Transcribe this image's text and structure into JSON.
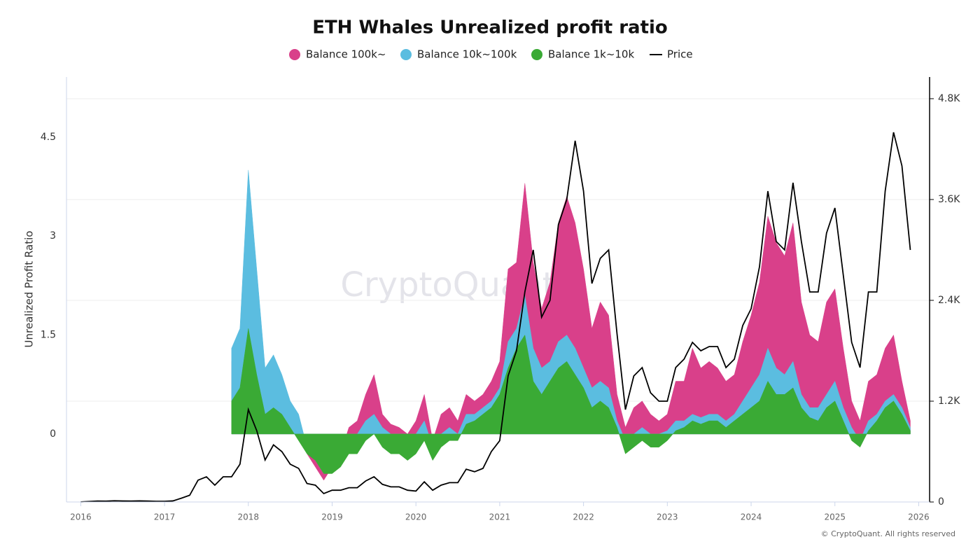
{
  "chart_data": {
    "type": "area",
    "title": "ETH Whales Unrealized profit ratio",
    "y_label": "Unrealized Profit Ratio",
    "watermark": "CryptoQuant",
    "copyright": "© CryptoQuant. All rights reserved",
    "x": [
      2016.0,
      2016.1,
      2016.2,
      2016.3,
      2016.4,
      2016.5,
      2016.6,
      2016.7,
      2016.8,
      2016.9,
      2017.0,
      2017.1,
      2017.2,
      2017.3,
      2017.4,
      2017.5,
      2017.6,
      2017.7,
      2017.8,
      2017.9,
      2018.0,
      2018.1,
      2018.2,
      2018.3,
      2018.4,
      2018.5,
      2018.6,
      2018.7,
      2018.8,
      2018.9,
      2019.0,
      2019.1,
      2019.2,
      2019.3,
      2019.4,
      2019.5,
      2019.6,
      2019.7,
      2019.8,
      2019.9,
      2020.0,
      2020.1,
      2020.2,
      2020.3,
      2020.4,
      2020.5,
      2020.6,
      2020.7,
      2020.8,
      2020.9,
      2021.0,
      2021.1,
      2021.2,
      2021.3,
      2021.4,
      2021.5,
      2021.6,
      2021.7,
      2021.8,
      2021.9,
      2022.0,
      2022.1,
      2022.2,
      2022.3,
      2022.4,
      2022.5,
      2022.6,
      2022.7,
      2022.8,
      2022.9,
      2023.0,
      2023.1,
      2023.2,
      2023.3,
      2023.4,
      2023.5,
      2023.6,
      2023.7,
      2023.8,
      2023.9,
      2024.0,
      2024.1,
      2024.2,
      2024.3,
      2024.4,
      2024.5,
      2024.6,
      2024.7,
      2024.8,
      2024.9,
      2025.0,
      2025.1,
      2025.2,
      2025.3,
      2025.4,
      2025.5,
      2025.6,
      2025.7,
      2025.8,
      2025.9
    ],
    "xlim": [
      2015.83,
      2026.13
    ],
    "xticks": [
      2016,
      2017,
      2018,
      2019,
      2020,
      2021,
      2022,
      2023,
      2024,
      2025,
      2026
    ],
    "ylim": [
      -1.03,
      5.41
    ],
    "yticks": [
      0,
      1.5,
      3,
      4.5
    ],
    "y2lim": [
      0,
      5058
    ],
    "y2ticks": [
      0,
      {
        "value": 1200,
        "label": "1.2K"
      },
      {
        "value": 2400,
        "label": "2.4K"
      },
      {
        "value": 3600,
        "label": "3.6K"
      },
      {
        "value": 4800,
        "label": "4.8K"
      }
    ],
    "grid": true,
    "legend": "top",
    "series": [
      {
        "name": "Balance 100k~",
        "color": "#d9408a",
        "values": [
          null,
          null,
          null,
          null,
          null,
          null,
          null,
          null,
          null,
          null,
          null,
          null,
          null,
          null,
          null,
          null,
          null,
          null,
          1.1,
          1.4,
          3.0,
          1.6,
          0.6,
          1.0,
          0.8,
          0.4,
          0.2,
          -0.3,
          -0.5,
          -0.7,
          -0.5,
          -0.3,
          0.1,
          0.2,
          0.6,
          0.9,
          0.3,
          0.15,
          0.1,
          0.0,
          0.2,
          0.6,
          -0.1,
          0.3,
          0.4,
          0.2,
          0.6,
          0.5,
          0.6,
          0.8,
          1.1,
          2.5,
          2.6,
          3.8,
          2.6,
          1.9,
          2.3,
          3.2,
          3.6,
          3.2,
          2.5,
          1.6,
          2.0,
          1.8,
          0.6,
          0.1,
          0.4,
          0.5,
          0.3,
          0.2,
          0.3,
          0.8,
          0.8,
          1.3,
          1.0,
          1.1,
          1.0,
          0.8,
          0.9,
          1.4,
          1.8,
          2.3,
          3.3,
          2.9,
          2.7,
          3.2,
          2.0,
          1.5,
          1.4,
          2.0,
          2.2,
          1.3,
          0.5,
          0.2,
          0.8,
          0.9,
          1.3,
          1.5,
          0.8,
          0.2
        ]
      },
      {
        "name": "Balance 10k~100k",
        "color": "#5bbde0",
        "values": [
          null,
          null,
          null,
          null,
          null,
          null,
          null,
          null,
          null,
          null,
          null,
          null,
          null,
          null,
          null,
          null,
          null,
          null,
          1.3,
          1.6,
          4.0,
          2.5,
          1.0,
          1.2,
          0.9,
          0.5,
          0.3,
          -0.2,
          -0.4,
          -0.6,
          -0.4,
          -0.2,
          -0.1,
          0.0,
          0.2,
          0.3,
          0.1,
          0.0,
          -0.05,
          -0.1,
          0.0,
          0.2,
          -0.2,
          0.0,
          0.1,
          0.0,
          0.3,
          0.3,
          0.4,
          0.5,
          0.7,
          1.4,
          1.6,
          2.1,
          1.3,
          1.0,
          1.1,
          1.4,
          1.5,
          1.3,
          1.0,
          0.7,
          0.8,
          0.7,
          0.2,
          -0.1,
          0.0,
          0.1,
          0.0,
          0.0,
          0.05,
          0.2,
          0.2,
          0.3,
          0.25,
          0.3,
          0.3,
          0.2,
          0.3,
          0.5,
          0.7,
          0.9,
          1.3,
          1.0,
          0.9,
          1.1,
          0.6,
          0.4,
          0.4,
          0.6,
          0.8,
          0.4,
          0.1,
          -0.1,
          0.2,
          0.3,
          0.5,
          0.6,
          0.4,
          0.1
        ]
      },
      {
        "name": "Balance 1k~10k",
        "color": "#3aaa35",
        "values": [
          null,
          null,
          null,
          null,
          null,
          null,
          null,
          null,
          null,
          null,
          null,
          null,
          null,
          null,
          null,
          null,
          null,
          null,
          0.5,
          0.7,
          1.6,
          0.9,
          0.3,
          0.4,
          0.3,
          0.1,
          -0.1,
          -0.3,
          -0.4,
          -0.6,
          -0.6,
          -0.5,
          -0.3,
          -0.3,
          -0.1,
          0.0,
          -0.2,
          -0.3,
          -0.3,
          -0.4,
          -0.3,
          -0.1,
          -0.4,
          -0.2,
          -0.1,
          -0.1,
          0.15,
          0.2,
          0.3,
          0.4,
          0.6,
          1.0,
          1.3,
          1.5,
          0.8,
          0.6,
          0.8,
          1.0,
          1.1,
          0.9,
          0.7,
          0.4,
          0.5,
          0.4,
          0.1,
          -0.3,
          -0.2,
          -0.1,
          -0.2,
          -0.2,
          -0.1,
          0.05,
          0.1,
          0.2,
          0.15,
          0.2,
          0.2,
          0.1,
          0.2,
          0.3,
          0.4,
          0.5,
          0.8,
          0.6,
          0.6,
          0.7,
          0.4,
          0.25,
          0.2,
          0.4,
          0.5,
          0.2,
          -0.1,
          -0.2,
          0.05,
          0.2,
          0.4,
          0.5,
          0.3,
          0.05
        ]
      },
      {
        "name": "Price",
        "color": "#000000",
        "axis": "y2",
        "values": [
          1,
          6,
          11,
          10,
          14,
          12,
          11,
          13,
          11,
          8,
          8,
          13,
          45,
          80,
          260,
          300,
          200,
          300,
          300,
          450,
          1100,
          850,
          500,
          680,
          600,
          450,
          400,
          220,
          200,
          100,
          140,
          140,
          170,
          170,
          250,
          300,
          210,
          180,
          180,
          140,
          130,
          240,
          140,
          200,
          230,
          230,
          390,
          360,
          400,
          600,
          730,
          1500,
          1800,
          2500,
          3000,
          2200,
          2400,
          3300,
          3600,
          4300,
          3700,
          2600,
          2900,
          3000,
          2000,
          1100,
          1500,
          1600,
          1300,
          1200,
          1200,
          1600,
          1700,
          1900,
          1800,
          1850,
          1850,
          1600,
          1700,
          2100,
          2300,
          2800,
          3700,
          3100,
          3000,
          3800,
          3100,
          2500,
          2500,
          3200,
          3500,
          2700,
          1900,
          1600,
          2500,
          2500,
          3700,
          4400,
          4000,
          3000
        ]
      }
    ]
  }
}
